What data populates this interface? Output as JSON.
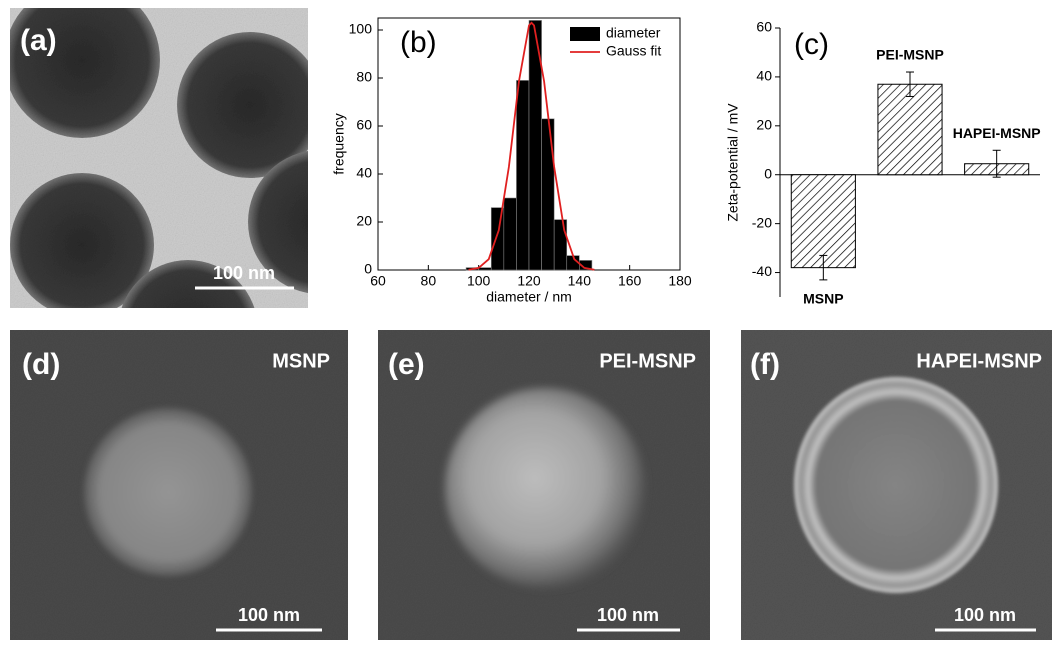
{
  "panels": {
    "a": {
      "label": "(a)",
      "scale": "100 nm"
    },
    "d": {
      "label": "(d)",
      "name": "MSNP",
      "scale": "100 nm"
    },
    "e": {
      "label": "(e)",
      "name": "PEI-MSNP",
      "scale": "100 nm"
    },
    "f": {
      "label": "(f)",
      "name": "HAPEI-MSNP",
      "scale": "100 nm"
    }
  },
  "chart_data": [
    {
      "type": "histogram",
      "title": "(b)",
      "x_label": "diameter / nm",
      "y_label": "frequency",
      "bins": [
        95,
        100,
        105,
        110,
        115,
        120,
        125,
        130,
        135,
        140,
        145
      ],
      "series": [
        {
          "name": "diameter",
          "color": "#000000",
          "values": [
            1,
            1,
            26,
            30,
            79,
            104,
            63,
            21,
            6,
            4
          ]
        },
        {
          "name": "Gauss fit",
          "color": "#e02020",
          "x": [
            96,
            100,
            104,
            108,
            112,
            116,
            120,
            121,
            122,
            126,
            130,
            134,
            138,
            142,
            146
          ],
          "values": [
            0.12,
            0.87,
            4.5,
            16.6,
            42.9,
            78.6,
            101.9,
            103,
            101.9,
            78.6,
            42.9,
            16.6,
            4.5,
            0.87,
            0.12
          ]
        }
      ],
      "xlim": [
        60,
        180
      ],
      "xticks": [
        60,
        80,
        100,
        120,
        140,
        160,
        180
      ],
      "ylim": [
        0,
        105
      ],
      "yticks": [
        0,
        20,
        40,
        60,
        80,
        100
      ],
      "legend": "top-right"
    },
    {
      "type": "bar",
      "title": "(c)",
      "y_label": "Zeta-potential / mV",
      "categories": [
        "MSNP",
        "PEI-MSNP",
        "HAPEI-MSNP"
      ],
      "values": [
        -38,
        37,
        4.5
      ],
      "errors": [
        5,
        5,
        5.5
      ],
      "color": "#000000",
      "hatch": true,
      "ylim": [
        -50,
        60
      ],
      "yticks": [
        -40,
        -20,
        0,
        20,
        40,
        60
      ]
    }
  ]
}
